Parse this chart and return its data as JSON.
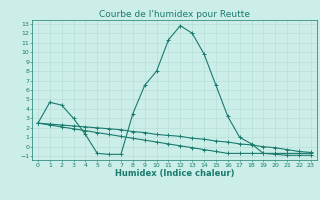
{
  "title": "Courbe de l'humidex pour Reutte",
  "xlabel": "Humidex (Indice chaleur)",
  "ylabel": "",
  "background_color": "#cceee8",
  "grid_color": "#b8ddd8",
  "line_color": "#1a7a6e",
  "xlim": [
    -0.5,
    23.5
  ],
  "ylim": [
    -1.4,
    13.4
  ],
  "xticks": [
    0,
    1,
    2,
    3,
    4,
    5,
    6,
    7,
    8,
    9,
    10,
    11,
    12,
    13,
    14,
    15,
    16,
    17,
    18,
    19,
    20,
    21,
    22,
    23
  ],
  "yticks": [
    -1,
    0,
    1,
    2,
    3,
    4,
    5,
    6,
    7,
    8,
    9,
    10,
    11,
    12,
    13
  ],
  "line1_x": [
    0,
    1,
    2,
    3,
    4,
    5,
    6,
    7,
    8,
    9,
    10,
    11,
    12,
    13,
    14,
    15,
    16,
    17,
    18,
    19,
    20,
    21,
    22,
    23
  ],
  "line1_y": [
    2.5,
    4.7,
    4.4,
    3.0,
    1.3,
    -0.7,
    -0.8,
    -0.8,
    3.5,
    6.5,
    8.0,
    11.3,
    12.8,
    12.0,
    9.8,
    6.5,
    3.2,
    1.0,
    0.3,
    -0.7,
    -0.8,
    -0.9,
    -0.9,
    -0.9
  ],
  "line2_x": [
    0,
    1,
    2,
    3,
    4,
    5,
    6,
    7,
    8,
    9,
    10,
    11,
    12,
    13,
    14,
    15,
    16,
    17,
    18,
    19,
    20,
    21,
    22,
    23
  ],
  "line2_y": [
    2.5,
    2.4,
    2.3,
    2.2,
    2.1,
    2.0,
    1.9,
    1.8,
    1.6,
    1.5,
    1.3,
    1.2,
    1.1,
    0.9,
    0.8,
    0.6,
    0.5,
    0.3,
    0.2,
    0.0,
    -0.1,
    -0.3,
    -0.5,
    -0.6
  ],
  "line3_x": [
    0,
    1,
    2,
    3,
    4,
    5,
    6,
    7,
    8,
    9,
    10,
    11,
    12,
    13,
    14,
    15,
    16,
    17,
    18,
    19,
    20,
    21,
    22,
    23
  ],
  "line3_y": [
    2.5,
    2.3,
    2.1,
    1.9,
    1.7,
    1.5,
    1.3,
    1.1,
    0.9,
    0.7,
    0.5,
    0.3,
    0.1,
    -0.1,
    -0.3,
    -0.5,
    -0.7,
    -0.7,
    -0.7,
    -0.7,
    -0.7,
    -0.7,
    -0.7,
    -0.7
  ],
  "marker": "+",
  "markersize": 3,
  "linewidth": 0.8,
  "title_fontsize": 6.5,
  "axis_fontsize": 6,
  "tick_fontsize": 4.5
}
